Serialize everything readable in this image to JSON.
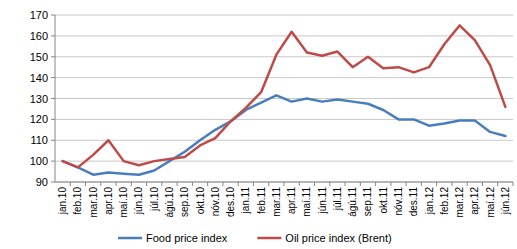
{
  "chart_data": {
    "type": "line",
    "categories": [
      "jan.10",
      "feb.10",
      "mar.10",
      "apr.10",
      "maí.10",
      "jún.10",
      "júl.10",
      "ágú.10",
      "sep.10",
      "okt.10",
      "nóv.10",
      "des.10",
      "jan.11",
      "feb.11",
      "mar.11",
      "apr.11",
      "maí.11",
      "jún.11",
      "júl.11",
      "ágú.11",
      "sep.11",
      "okt.11",
      "nóv.11",
      "des.11",
      "jan.12",
      "feb.12",
      "mar.12",
      "apr.12",
      "maí.12",
      "jún.12"
    ],
    "series": [
      {
        "name": "Food price index",
        "color": "#4a7ebb",
        "values": [
          100,
          97,
          93.5,
          94.5,
          94,
          93.5,
          95.5,
          100,
          104.5,
          110,
          115,
          119,
          124.5,
          128,
          131.5,
          128.5,
          130,
          128.5,
          129.5,
          128.5,
          127.5,
          124.5,
          120,
          120,
          117,
          118,
          119.5,
          119.5,
          114,
          112
        ]
      },
      {
        "name": "Oil price index (Brent)",
        "color": "#be4b48",
        "values": [
          100,
          97,
          103,
          110,
          100,
          98,
          100,
          101,
          102,
          107.5,
          111,
          119,
          125.5,
          133,
          151,
          162,
          152,
          150.5,
          152.5,
          145,
          150,
          144.5,
          145,
          142.5,
          145,
          156,
          165,
          158,
          146,
          126
        ]
      }
    ],
    "ylim": [
      90,
      170
    ],
    "yticks": [
      90,
      100,
      110,
      120,
      130,
      140,
      150,
      160,
      170
    ],
    "grid": true,
    "legend": "bottom"
  }
}
